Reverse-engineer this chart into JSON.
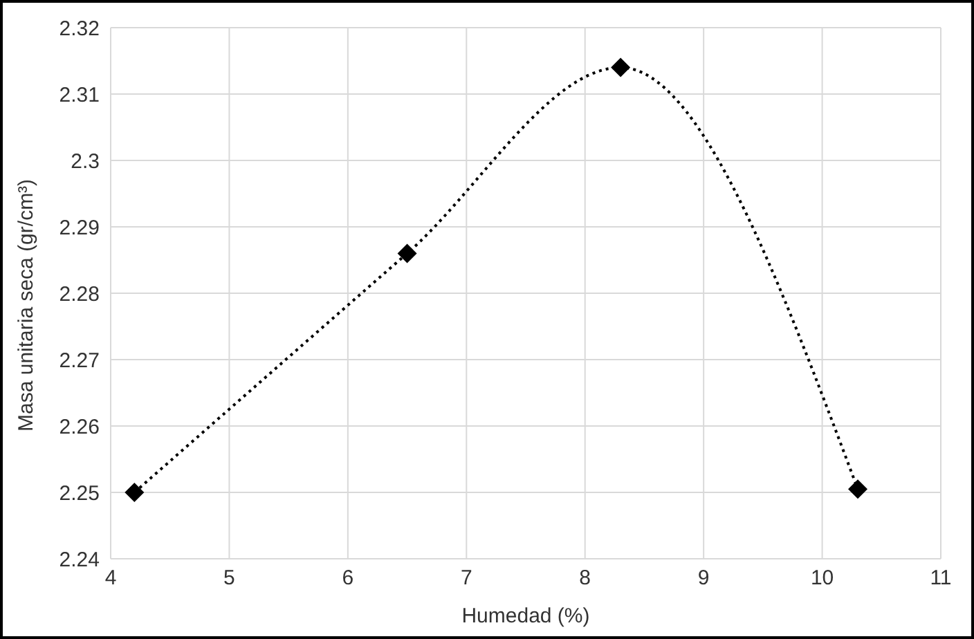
{
  "chart_data": {
    "type": "line",
    "xlabel": "Humedad (%)",
    "ylabel": "Masa unitaria seca (gr/cm³)",
    "x": [
      4.2,
      6.5,
      8.3,
      10.3
    ],
    "series": [
      {
        "color": "#000000",
        "values": [
          2.25,
          2.286,
          2.314,
          2.2505
        ]
      }
    ],
    "xlim": [
      4,
      11
    ],
    "xticks": [
      4,
      5,
      6,
      7,
      8,
      9,
      10,
      11
    ],
    "ylim": [
      2.24,
      2.32
    ],
    "yticks": [
      2.24,
      2.25,
      2.26,
      2.27,
      2.28,
      2.29,
      2.3,
      2.31,
      2.32
    ],
    "grid": true,
    "legend": false,
    "marker": "diamond",
    "line_style": "dotted"
  }
}
